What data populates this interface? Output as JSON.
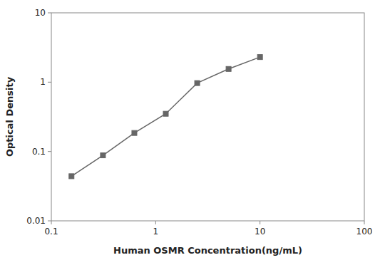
{
  "chart_data": {
    "type": "line",
    "x": [
      0.156,
      0.3125,
      0.625,
      1.25,
      2.5,
      5.0,
      10.0
    ],
    "values": [
      0.044,
      0.088,
      0.185,
      0.35,
      0.97,
      1.55,
      2.3
    ],
    "xlabel": "Human OSMR Concentration(ng/mL)",
    "ylabel": "Optical Density",
    "xlim": [
      0.1,
      100
    ],
    "ylim": [
      0.01,
      10
    ],
    "xticks": [
      0.1,
      1,
      10,
      100
    ],
    "yticks": [
      0.01,
      0.1,
      1,
      10
    ],
    "log": true,
    "grid": false,
    "color": "#666666",
    "marker": "square"
  }
}
